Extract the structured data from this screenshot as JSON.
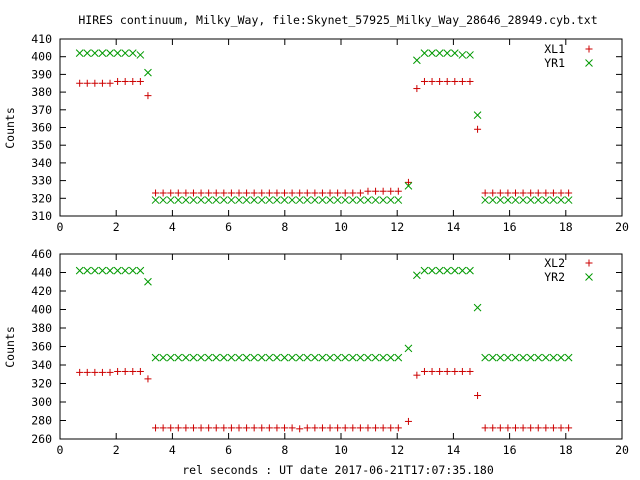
{
  "title": "HIRES continuum, Milky_Way, file:Skynet_57925_Milky_Way_28646_28949.cyb.txt",
  "xlabel": "rel seconds : UT date 2017-06-21T17:07:35.180",
  "colors": {
    "red": "#cc0000",
    "green": "#009900"
  },
  "chart_data": [
    {
      "type": "scatter",
      "ylabel": "Counts",
      "xlim": [
        0,
        20
      ],
      "ylim": [
        310,
        410
      ],
      "xticks": [
        0,
        2,
        4,
        6,
        8,
        10,
        12,
        14,
        16,
        18,
        20
      ],
      "yticks": [
        310,
        320,
        330,
        340,
        350,
        360,
        370,
        380,
        390,
        400,
        410
      ],
      "grid": false,
      "legend_position": "top-right",
      "series": [
        {
          "name": "XL1",
          "marker": "plus",
          "color": "#cc0000",
          "x": [
            0.7,
            0.97,
            1.24,
            1.51,
            1.78,
            2.05,
            2.32,
            2.59,
            2.86,
            3.13,
            3.4,
            3.67,
            3.94,
            4.21,
            4.48,
            4.75,
            5.02,
            5.29,
            5.56,
            5.83,
            6.1,
            6.37,
            6.64,
            6.91,
            7.18,
            7.45,
            7.72,
            7.99,
            8.26,
            8.53,
            8.8,
            9.07,
            9.34,
            9.61,
            9.88,
            10.15,
            10.42,
            10.69,
            10.96,
            11.23,
            11.5,
            11.77,
            12.04,
            12.4,
            12.7,
            12.97,
            13.24,
            13.51,
            13.78,
            14.05,
            14.32,
            14.59,
            14.86,
            15.13,
            15.4,
            15.67,
            15.94,
            16.21,
            16.48,
            16.75,
            17.02,
            17.29,
            17.56,
            17.83,
            18.1
          ],
          "y": [
            385,
            385,
            385,
            385,
            385,
            386,
            386,
            386,
            386,
            378,
            323,
            323,
            323,
            323,
            323,
            323,
            323,
            323,
            323,
            323,
            323,
            323,
            323,
            323,
            323,
            323,
            323,
            323,
            323,
            323,
            323,
            323,
            323,
            323,
            323,
            323,
            323,
            323,
            324,
            324,
            324,
            324,
            324,
            329,
            382,
            386,
            386,
            386,
            386,
            386,
            386,
            386,
            359,
            323,
            323,
            323,
            323,
            323,
            323,
            323,
            323,
            323,
            323,
            323,
            323
          ]
        },
        {
          "name": "YR1",
          "marker": "cross",
          "color": "#009900",
          "x": [
            0.7,
            0.97,
            1.24,
            1.51,
            1.78,
            2.05,
            2.32,
            2.59,
            2.86,
            3.13,
            3.4,
            3.67,
            3.94,
            4.21,
            4.48,
            4.75,
            5.02,
            5.29,
            5.56,
            5.83,
            6.1,
            6.37,
            6.64,
            6.91,
            7.18,
            7.45,
            7.72,
            7.99,
            8.26,
            8.53,
            8.8,
            9.07,
            9.34,
            9.61,
            9.88,
            10.15,
            10.42,
            10.69,
            10.96,
            11.23,
            11.5,
            11.77,
            12.04,
            12.4,
            12.7,
            12.97,
            13.24,
            13.51,
            13.78,
            14.05,
            14.32,
            14.59,
            14.86,
            15.13,
            15.4,
            15.67,
            15.94,
            16.21,
            16.48,
            16.75,
            17.02,
            17.29,
            17.56,
            17.83,
            18.1
          ],
          "y": [
            402,
            402,
            402,
            402,
            402,
            402,
            402,
            402,
            401,
            391,
            319,
            319,
            319,
            319,
            319,
            319,
            319,
            319,
            319,
            319,
            319,
            319,
            319,
            319,
            319,
            319,
            319,
            319,
            319,
            319,
            319,
            319,
            319,
            319,
            319,
            319,
            319,
            319,
            319,
            319,
            319,
            319,
            319,
            327,
            398,
            402,
            402,
            402,
            402,
            402,
            401,
            401,
            367,
            319,
            319,
            319,
            319,
            319,
            319,
            319,
            319,
            319,
            319,
            319,
            319
          ]
        }
      ]
    },
    {
      "type": "scatter",
      "ylabel": "Counts",
      "xlabel": "rel seconds : UT date 2017-06-21T17:07:35.180",
      "xlim": [
        0,
        20
      ],
      "ylim": [
        260,
        460
      ],
      "xticks": [
        0,
        2,
        4,
        6,
        8,
        10,
        12,
        14,
        16,
        18,
        20
      ],
      "yticks": [
        260,
        280,
        300,
        320,
        340,
        360,
        380,
        400,
        420,
        440,
        460
      ],
      "grid": false,
      "legend_position": "top-right",
      "series": [
        {
          "name": "XL2",
          "marker": "plus",
          "color": "#cc0000",
          "x": [
            0.7,
            0.97,
            1.24,
            1.51,
            1.78,
            2.05,
            2.32,
            2.59,
            2.86,
            3.13,
            3.4,
            3.67,
            3.94,
            4.21,
            4.48,
            4.75,
            5.02,
            5.29,
            5.56,
            5.83,
            6.1,
            6.37,
            6.64,
            6.91,
            7.18,
            7.45,
            7.72,
            7.99,
            8.26,
            8.53,
            8.8,
            9.07,
            9.34,
            9.61,
            9.88,
            10.15,
            10.42,
            10.69,
            10.96,
            11.23,
            11.5,
            11.77,
            12.04,
            12.4,
            12.7,
            12.97,
            13.24,
            13.51,
            13.78,
            14.05,
            14.32,
            14.59,
            14.86,
            15.13,
            15.4,
            15.67,
            15.94,
            16.21,
            16.48,
            16.75,
            17.02,
            17.29,
            17.56,
            17.83,
            18.1
          ],
          "y": [
            332,
            332,
            332,
            332,
            332,
            333,
            333,
            333,
            333,
            325,
            272,
            272,
            272,
            272,
            272,
            272,
            272,
            272,
            272,
            272,
            272,
            272,
            272,
            272,
            272,
            272,
            272,
            272,
            272,
            271,
            272,
            272,
            272,
            272,
            272,
            272,
            272,
            272,
            272,
            272,
            272,
            272,
            272,
            279,
            329,
            333,
            333,
            333,
            333,
            333,
            333,
            333,
            307,
            272,
            272,
            272,
            272,
            272,
            272,
            272,
            272,
            272,
            272,
            272,
            272
          ]
        },
        {
          "name": "YR2",
          "marker": "cross",
          "color": "#009900",
          "x": [
            0.7,
            0.97,
            1.24,
            1.51,
            1.78,
            2.05,
            2.32,
            2.59,
            2.86,
            3.13,
            3.4,
            3.67,
            3.94,
            4.21,
            4.48,
            4.75,
            5.02,
            5.29,
            5.56,
            5.83,
            6.1,
            6.37,
            6.64,
            6.91,
            7.18,
            7.45,
            7.72,
            7.99,
            8.26,
            8.53,
            8.8,
            9.07,
            9.34,
            9.61,
            9.88,
            10.15,
            10.42,
            10.69,
            10.96,
            11.23,
            11.5,
            11.77,
            12.04,
            12.4,
            12.7,
            12.97,
            13.24,
            13.51,
            13.78,
            14.05,
            14.32,
            14.59,
            14.86,
            15.13,
            15.4,
            15.67,
            15.94,
            16.21,
            16.48,
            16.75,
            17.02,
            17.29,
            17.56,
            17.83,
            18.1
          ],
          "y": [
            442,
            442,
            442,
            442,
            442,
            442,
            442,
            442,
            442,
            430,
            348,
            348,
            348,
            348,
            348,
            348,
            348,
            348,
            348,
            348,
            348,
            348,
            348,
            348,
            348,
            348,
            348,
            348,
            348,
            348,
            348,
            348,
            348,
            348,
            348,
            348,
            348,
            348,
            348,
            348,
            348,
            348,
            348,
            358,
            437,
            442,
            442,
            442,
            442,
            442,
            442,
            442,
            402,
            348,
            348,
            348,
            348,
            348,
            348,
            348,
            348,
            348,
            348,
            348,
            348
          ]
        }
      ]
    }
  ]
}
